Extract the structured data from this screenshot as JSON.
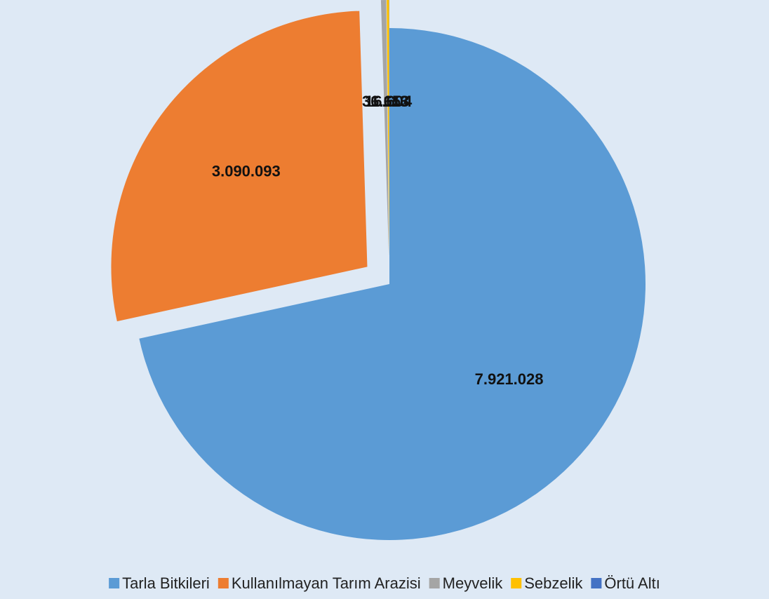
{
  "chart_data": {
    "type": "pie",
    "categories": [
      "Tarla Bitkileri",
      "Kullanılmayan Tarım Arazisi",
      "Meyvelik",
      "Sebzelik",
      "Örtü Altı"
    ],
    "values": [
      7921028,
      3090093,
      36653,
      16604,
      1113
    ],
    "value_labels": [
      "7.921.028",
      "3.090.093",
      "36.653",
      "16.604",
      "1.113"
    ],
    "colors": [
      "#5b9bd5",
      "#ed7d31",
      "#a5a5a5",
      "#ffc000",
      "#4472c4"
    ],
    "legend": "bottom"
  }
}
